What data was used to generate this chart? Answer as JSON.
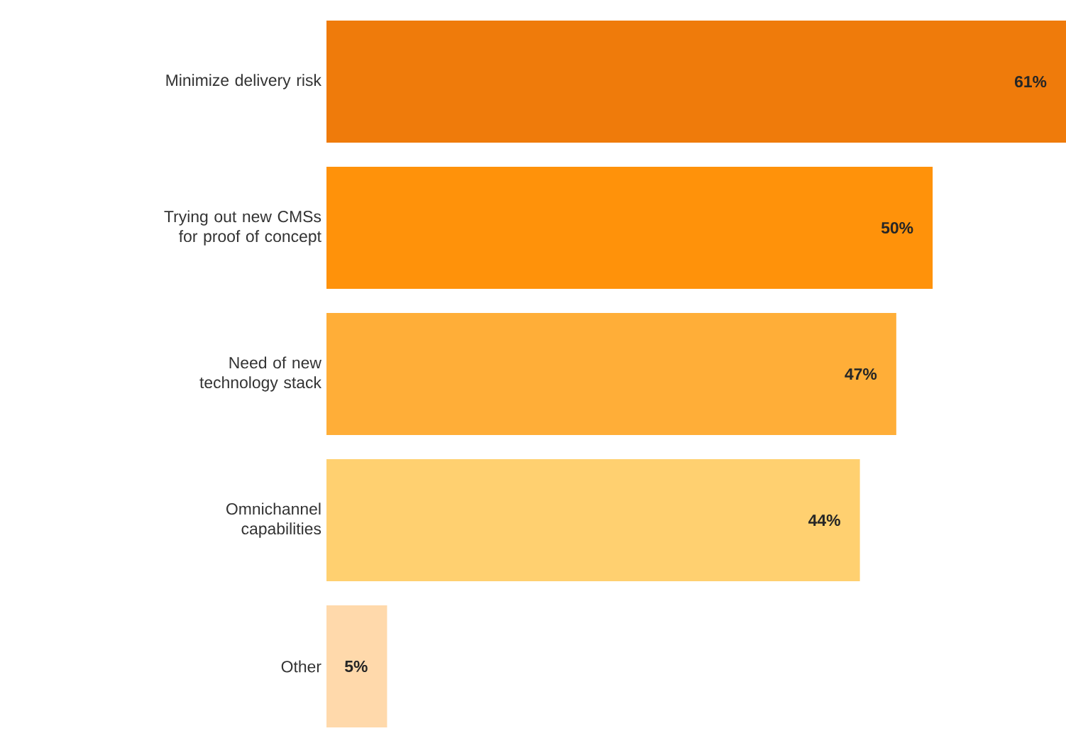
{
  "chart_data": {
    "type": "bar",
    "orientation": "horizontal",
    "categories": [
      "Minimize delivery risk",
      "Trying out new CMSs for proof of concept",
      "Need of new technology stack",
      "Omnichannel capabilities",
      "Other"
    ],
    "values": [
      61,
      50,
      47,
      44,
      5
    ],
    "colors": [
      "#ef7b0b",
      "#ff920a",
      "#ffae38",
      "#ffd070",
      "#ffd9ab"
    ],
    "value_labels": [
      "61%",
      "50%",
      "47%",
      "44%",
      "5%"
    ],
    "tick_labels": "y"
  }
}
